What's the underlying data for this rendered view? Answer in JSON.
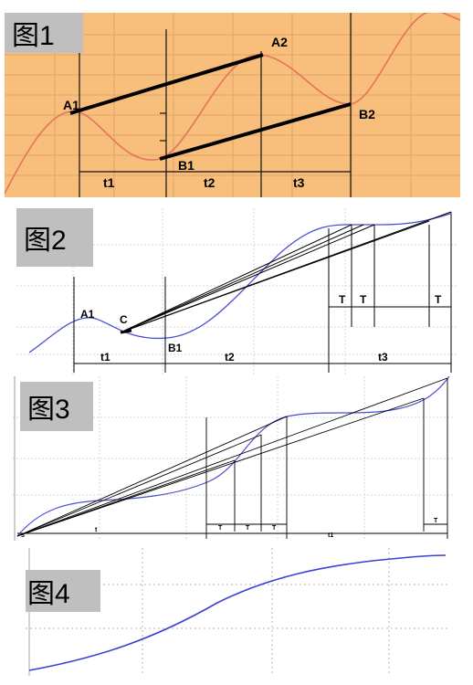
{
  "colors": {
    "panel1_bg": "#f7be7c",
    "panel1_grid": "#e2a366",
    "curve_red": "#e5735a",
    "curve_blue": "#4a4fd0",
    "grid_gray": "#d0d0d0",
    "label_bg": "#bfbfbf"
  },
  "figure1": {
    "label": "图1",
    "points": {
      "a1": "A1",
      "a2": "A2",
      "b1": "B1",
      "b2": "B2"
    },
    "intervals": {
      "t1": "t1",
      "t2": "t2",
      "t3": "t3"
    }
  },
  "figure2": {
    "label": "图2",
    "points": {
      "a1": "A1",
      "b1": "B1",
      "c": "C"
    },
    "intervals": {
      "t1": "t1",
      "t2": "t2",
      "t3": "t3"
    },
    "t_marks": [
      "T",
      "T",
      "T"
    ]
  },
  "figure3": {
    "label": "图3",
    "corner_mark": "S",
    "intervals": {
      "t": "t",
      "t1": "t1"
    },
    "t_marks": [
      "T",
      "T",
      "T",
      "T"
    ]
  },
  "figure4": {
    "label": "图4"
  }
}
